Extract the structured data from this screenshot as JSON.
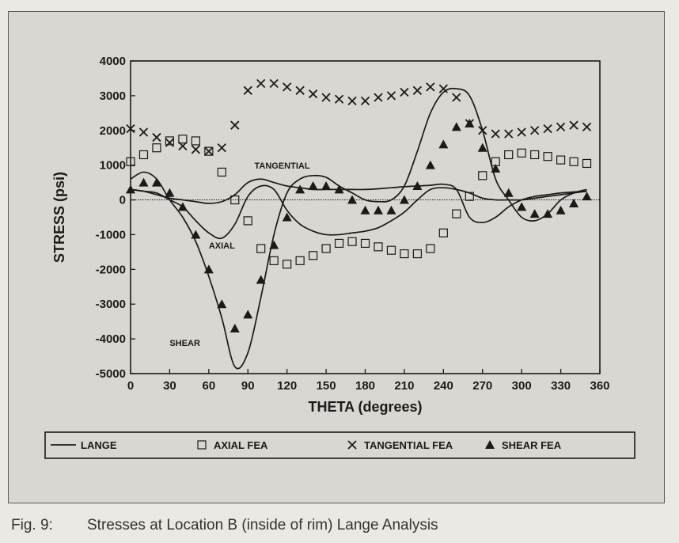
{
  "caption": {
    "label": "Fig. 9:",
    "text": "Stresses at Location B (inside of rim) Lange Analysis"
  },
  "chart_data": {
    "type": "scatter",
    "xlabel": "THETA (degrees)",
    "ylabel": "STRESS (psi)",
    "xlim": [
      0,
      360
    ],
    "ylim": [
      -5000,
      4000
    ],
    "x_ticks": [
      0,
      30,
      60,
      90,
      120,
      150,
      180,
      210,
      240,
      270,
      300,
      330,
      360
    ],
    "y_ticks": [
      4000,
      3000,
      2000,
      1000,
      0,
      -1000,
      -2000,
      -3000,
      -4000,
      -5000
    ],
    "grid": false,
    "zero_line": true,
    "legend_position": "bottom",
    "annotations": [
      {
        "text": "TANGENTIAL",
        "x": 95,
        "y": 900
      },
      {
        "text": "AXIAL",
        "x": 60,
        "y": -1400
      },
      {
        "text": "SHEAR",
        "x": 30,
        "y": -4200
      }
    ],
    "series": [
      {
        "name": "LANGE",
        "kind": "line",
        "marker": "line",
        "lines": [
          {
            "label": "TANGENTIAL",
            "x": [
              0,
              10,
              20,
              30,
              40,
              50,
              60,
              70,
              80,
              90,
              100,
              110,
              120,
              130,
              140,
              150,
              160,
              170,
              180,
              190,
              200,
              210,
              220,
              230,
              240,
              250,
              260,
              270,
              280,
              290,
              300,
              310,
              320,
              330,
              340,
              350
            ],
            "y": [
              300,
              250,
              150,
              50,
              0,
              -50,
              -100,
              -50,
              150,
              500,
              600,
              500,
              400,
              350,
              300,
              300,
              300,
              300,
              300,
              320,
              350,
              380,
              400,
              420,
              450,
              300,
              -500,
              -650,
              -500,
              -200,
              0,
              100,
              150,
              200,
              230,
              250
            ]
          },
          {
            "label": "AXIAL",
            "x": [
              0,
              10,
              20,
              30,
              40,
              50,
              60,
              70,
              80,
              90,
              100,
              110,
              120,
              130,
              140,
              150,
              160,
              170,
              180,
              190,
              200,
              210,
              220,
              230,
              240,
              250,
              260,
              270,
              280,
              290,
              300,
              310,
              320,
              330,
              340,
              350
            ],
            "y": [
              300,
              250,
              200,
              0,
              -200,
              -600,
              -950,
              -1100,
              -700,
              100,
              400,
              300,
              -300,
              -700,
              -900,
              -1000,
              -1000,
              -950,
              -900,
              -800,
              -600,
              -350,
              0,
              300,
              350,
              300,
              200,
              50,
              0,
              0,
              0,
              50,
              100,
              150,
              200,
              250
            ]
          },
          {
            "label": "SHEAR",
            "x": [
              0,
              10,
              20,
              30,
              40,
              50,
              60,
              70,
              80,
              90,
              100,
              110,
              120,
              130,
              140,
              150,
              160,
              170,
              180,
              190,
              200,
              210,
              220,
              230,
              240,
              250,
              260,
              270,
              280,
              290,
              300,
              310,
              320,
              330,
              340,
              350
            ],
            "y": [
              600,
              800,
              600,
              0,
              -500,
              -1200,
              -2200,
              -3400,
              -4800,
              -4400,
              -2800,
              -1000,
              200,
              600,
              700,
              650,
              400,
              200,
              0,
              -50,
              0,
              400,
              1400,
              2500,
              3100,
              3200,
              3000,
              2000,
              600,
              0,
              -500,
              -600,
              -400,
              0,
              200,
              300
            ]
          }
        ]
      },
      {
        "name": "AXIAL FEA",
        "kind": "points",
        "marker": "open-square",
        "x": [
          0,
          10,
          20,
          30,
          40,
          50,
          60,
          70,
          80,
          90,
          100,
          110,
          120,
          130,
          140,
          150,
          160,
          170,
          180,
          190,
          200,
          210,
          220,
          230,
          240,
          250,
          260,
          270,
          280,
          290,
          300,
          310,
          320,
          330,
          340,
          350
        ],
        "y": [
          1100,
          1300,
          1500,
          1700,
          1750,
          1700,
          1400,
          800,
          0,
          -600,
          -1400,
          -1750,
          -1850,
          -1750,
          -1600,
          -1400,
          -1250,
          -1200,
          -1250,
          -1350,
          -1450,
          -1550,
          -1550,
          -1400,
          -950,
          -400,
          100,
          700,
          1100,
          1300,
          1350,
          1300,
          1250,
          1150,
          1100,
          1050
        ]
      },
      {
        "name": "TANGENTIAL FEA",
        "kind": "points",
        "marker": "x",
        "x": [
          0,
          10,
          20,
          30,
          40,
          50,
          60,
          70,
          80,
          90,
          100,
          110,
          120,
          130,
          140,
          150,
          160,
          170,
          180,
          190,
          200,
          210,
          220,
          230,
          240,
          250,
          260,
          270,
          280,
          290,
          300,
          310,
          320,
          330,
          340,
          350
        ],
        "y": [
          2050,
          1950,
          1800,
          1650,
          1550,
          1450,
          1400,
          1500,
          2150,
          3150,
          3350,
          3350,
          3250,
          3150,
          3050,
          2950,
          2900,
          2850,
          2850,
          2950,
          3000,
          3100,
          3150,
          3250,
          3200,
          2950,
          2200,
          2000,
          1900,
          1900,
          1950,
          2000,
          2050,
          2100,
          2150,
          2100
        ]
      },
      {
        "name": "SHEAR FEA",
        "kind": "points",
        "marker": "filled-triangle",
        "x": [
          0,
          10,
          20,
          30,
          40,
          50,
          60,
          70,
          80,
          90,
          100,
          110,
          120,
          130,
          140,
          150,
          160,
          170,
          180,
          190,
          200,
          210,
          220,
          230,
          240,
          250,
          260,
          270,
          280,
          290,
          300,
          310,
          320,
          330,
          340,
          350
        ],
        "y": [
          300,
          500,
          500,
          200,
          -200,
          -1000,
          -2000,
          -3000,
          -3700,
          -3300,
          -2300,
          -1300,
          -500,
          300,
          400,
          400,
          300,
          0,
          -300,
          -300,
          -300,
          0,
          400,
          1000,
          1600,
          2100,
          2200,
          1500,
          900,
          200,
          -200,
          -400,
          -400,
          -300,
          -100,
          100
        ]
      }
    ]
  },
  "colors": {
    "ink": "#1a1a1a",
    "panel": "#dad7d2",
    "page": "#ece9e4"
  }
}
